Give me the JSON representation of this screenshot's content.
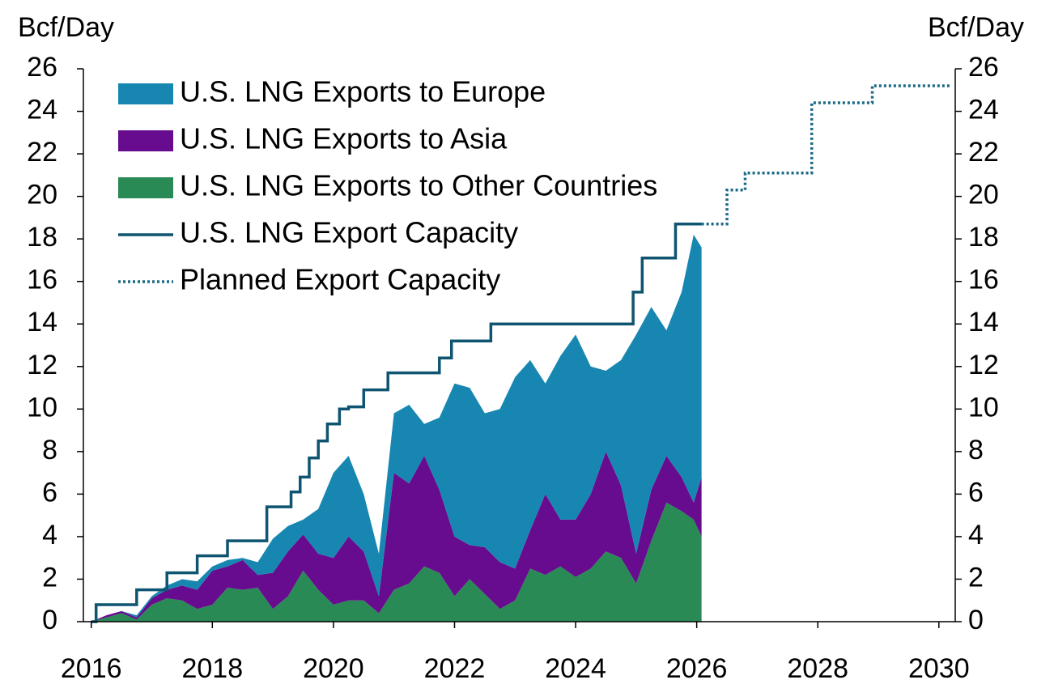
{
  "chart_data": {
    "type": "stacked_area",
    "y_label": "Bcf/Day",
    "y2_label": "Bcf/Day",
    "x": [
      2016,
      2016.25,
      2016.5,
      2016.75,
      2017,
      2017.25,
      2017.5,
      2017.75,
      2018,
      2018.25,
      2018.5,
      2018.75,
      2019,
      2019.25,
      2019.5,
      2019.75,
      2020,
      2020.25,
      2020.5,
      2020.75,
      2021,
      2021.25,
      2021.5,
      2021.75,
      2022,
      2022.25,
      2022.5,
      2022.75,
      2023,
      2023.25,
      2023.5,
      2023.75,
      2024,
      2024.25,
      2024.5,
      2024.75,
      2025,
      2025.25,
      2025.5,
      2025.75,
      2025.95,
      2026.08
    ],
    "series": [
      {
        "name": "U.S. LNG Exports to Other Countries",
        "color": "#2a8a55",
        "values": [
          0,
          0.2,
          0.4,
          0.1,
          0.8,
          1.1,
          1.0,
          0.6,
          0.8,
          1.6,
          1.5,
          1.6,
          0.6,
          1.2,
          2.4,
          1.5,
          0.8,
          1.0,
          1.0,
          0.4,
          1.5,
          1.8,
          2.6,
          2.3,
          1.2,
          2.0,
          1.3,
          0.6,
          1.0,
          2.5,
          2.2,
          2.6,
          2.1,
          2.5,
          3.3,
          3.0,
          1.8,
          3.8,
          5.6,
          5.2,
          4.8,
          4.0
        ]
      },
      {
        "name": "U.S. LNG Exports to Asia",
        "color": "#670c8f",
        "values": [
          0,
          0.1,
          0.1,
          0.1,
          0.3,
          0.4,
          0.7,
          0.9,
          1.6,
          1.0,
          1.4,
          0.6,
          1.7,
          2.1,
          1.7,
          1.7,
          2.2,
          3.0,
          2.3,
          0.8,
          5.5,
          4.7,
          5.2,
          3.9,
          2.8,
          1.6,
          2.2,
          2.2,
          1.5,
          1.8,
          3.8,
          2.2,
          2.7,
          3.5,
          4.7,
          3.4,
          1.4,
          2.4,
          2.2,
          1.6,
          0.8,
          2.8
        ]
      },
      {
        "name": "U.S. LNG Exports to Europe",
        "color": "#1787b1",
        "values": [
          0,
          0,
          0,
          0.1,
          0.1,
          0.2,
          0.3,
          0.4,
          0.2,
          0.3,
          0.1,
          0.6,
          1.6,
          1.2,
          0.7,
          2.1,
          4.0,
          3.8,
          2.7,
          2.0,
          2.8,
          3.7,
          1.5,
          3.4,
          7.2,
          7.4,
          6.3,
          7.2,
          9.0,
          8.0,
          5.2,
          7.7,
          8.7,
          6.0,
          3.8,
          5.9,
          10.3,
          8.6,
          5.9,
          8.7,
          12.6,
          10.8
        ]
      }
    ],
    "lines": [
      {
        "name": "U.S. LNG Export Capacity",
        "color": "#0f5470",
        "style": "solid",
        "step": true,
        "x": [
          2016,
          2016.08,
          2016.75,
          2017.25,
          2017.75,
          2018.25,
          2018.9,
          2019.3,
          2019.45,
          2019.6,
          2019.75,
          2019.9,
          2020.1,
          2020.25,
          2020.5,
          2020.9,
          2021.75,
          2021.95,
          2022.3,
          2022.6,
          2024.85,
          2024.95,
          2025.1,
          2025.65,
          2026.08
        ],
        "values": [
          0,
          0.8,
          1.5,
          2.3,
          3.1,
          3.8,
          5.4,
          6.1,
          6.8,
          7.7,
          8.5,
          9.3,
          10.0,
          10.1,
          10.9,
          11.7,
          12.4,
          13.2,
          13.2,
          14.0,
          14.0,
          15.5,
          17.1,
          18.7,
          18.7
        ]
      },
      {
        "name": "Planned Export Capacity",
        "color": "#1b6a86",
        "style": "dotted",
        "step": true,
        "x": [
          2026.08,
          2026.5,
          2026.8,
          2027.9,
          2028.9,
          2030.2
        ],
        "values": [
          18.7,
          20.3,
          21.1,
          24.4,
          25.2,
          25.2
        ]
      }
    ],
    "xlim": [
      2015.87,
      2030.27
    ],
    "xticks": [
      2016,
      2018,
      2020,
      2022,
      2024,
      2026,
      2028,
      2030
    ],
    "ylim": [
      0,
      26
    ],
    "yticks": [
      0,
      2,
      4,
      6,
      8,
      10,
      12,
      14,
      16,
      18,
      20,
      22,
      24,
      26
    ],
    "y2lim": [
      0,
      26
    ],
    "y2ticks": [
      0,
      2,
      4,
      6,
      8,
      10,
      12,
      14,
      16,
      18,
      20,
      22,
      24,
      26
    ],
    "legend": "upper left"
  }
}
